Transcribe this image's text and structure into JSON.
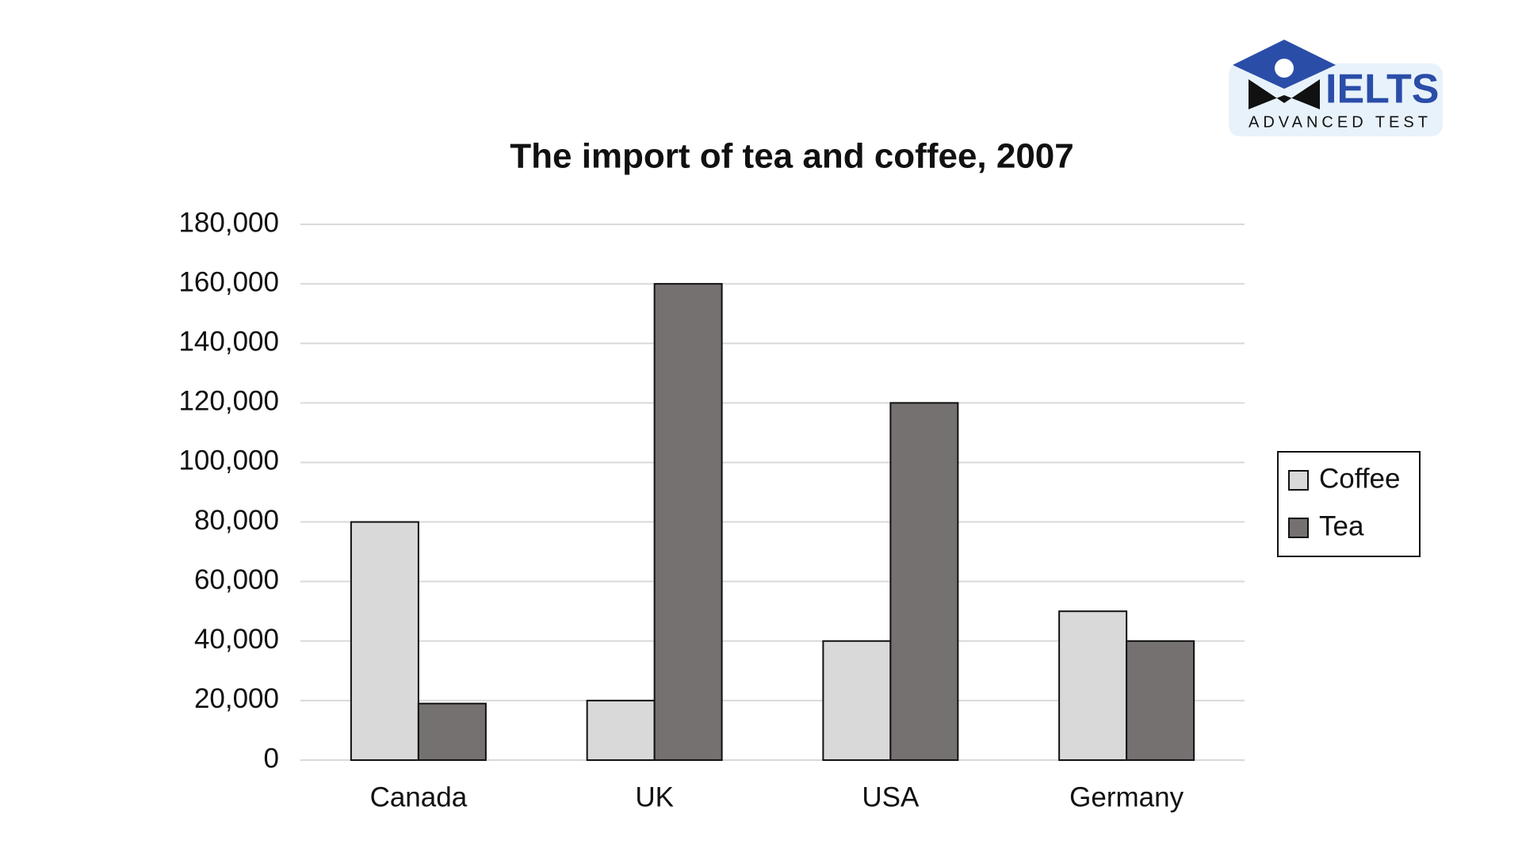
{
  "chart_data": {
    "type": "bar",
    "title": "The import of tea and coffee, 2007",
    "categories": [
      "Canada",
      "UK",
      "USA",
      "Germany"
    ],
    "series": [
      {
        "name": "Coffee",
        "color": "#d9d9d9",
        "values": [
          80000,
          20000,
          40000,
          50000
        ]
      },
      {
        "name": "Tea",
        "color": "#767171",
        "values": [
          19000,
          160000,
          120000,
          40000
        ]
      }
    ],
    "ylim": [
      0,
      180000
    ],
    "yticks": [
      0,
      {
        "value": 20000,
        "label": "20,000"
      },
      {
        "value": 40000,
        "label": "40,000"
      },
      {
        "value": 60000,
        "label": "60,000"
      },
      {
        "value": 80000,
        "label": "80,000"
      },
      {
        "value": 100000,
        "label": "100,000"
      },
      {
        "value": 120000,
        "label": "120,000"
      },
      {
        "value": 140000,
        "label": "140,000"
      },
      {
        "value": 160000,
        "label": "160,000"
      },
      {
        "value": 180000,
        "label": "180,000"
      }
    ],
    "grid": true,
    "legend": "right"
  },
  "logo": {
    "text": "IELTS",
    "subtitle": "ADVANCED TEST"
  }
}
